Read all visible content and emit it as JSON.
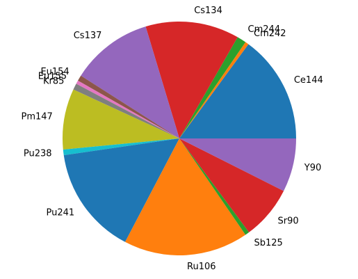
{
  "chart_data": {
    "type": "pie",
    "title": "",
    "start_angle_deg": 0,
    "direction": "counterclockwise",
    "slices": [
      {
        "label": "Ce144",
        "value": 15.3,
        "color": "#1f77b4"
      },
      {
        "label": "Cm242",
        "value": 0.5,
        "color": "#ff7f0e"
      },
      {
        "label": "Cm244",
        "value": 1.3,
        "color": "#2ca02c"
      },
      {
        "label": "Cs134",
        "value": 13.3,
        "color": "#d62728"
      },
      {
        "label": "Cs137",
        "value": 11.6,
        "color": "#9467bd"
      },
      {
        "label": "Eu154",
        "value": 0.8,
        "color": "#8c564b"
      },
      {
        "label": "Eu155",
        "value": 0.5,
        "color": "#e377c2"
      },
      {
        "label": "Kr85",
        "value": 0.9,
        "color": "#7f7f7f"
      },
      {
        "label": "Pm147",
        "value": 8.6,
        "color": "#bcbd22"
      },
      {
        "label": "Pu238",
        "value": 0.8,
        "color": "#17becf"
      },
      {
        "label": "Pu241",
        "value": 15.4,
        "color": "#1f77b4"
      },
      {
        "label": "Ru106",
        "value": 17.7,
        "color": "#ff7f0e"
      },
      {
        "label": "Sb125",
        "value": 0.6,
        "color": "#2ca02c"
      },
      {
        "label": "Sr90",
        "value": 7.6,
        "color": "#d62728"
      },
      {
        "label": "Y90",
        "value": 7.6,
        "color": "#9467bd"
      }
    ]
  }
}
